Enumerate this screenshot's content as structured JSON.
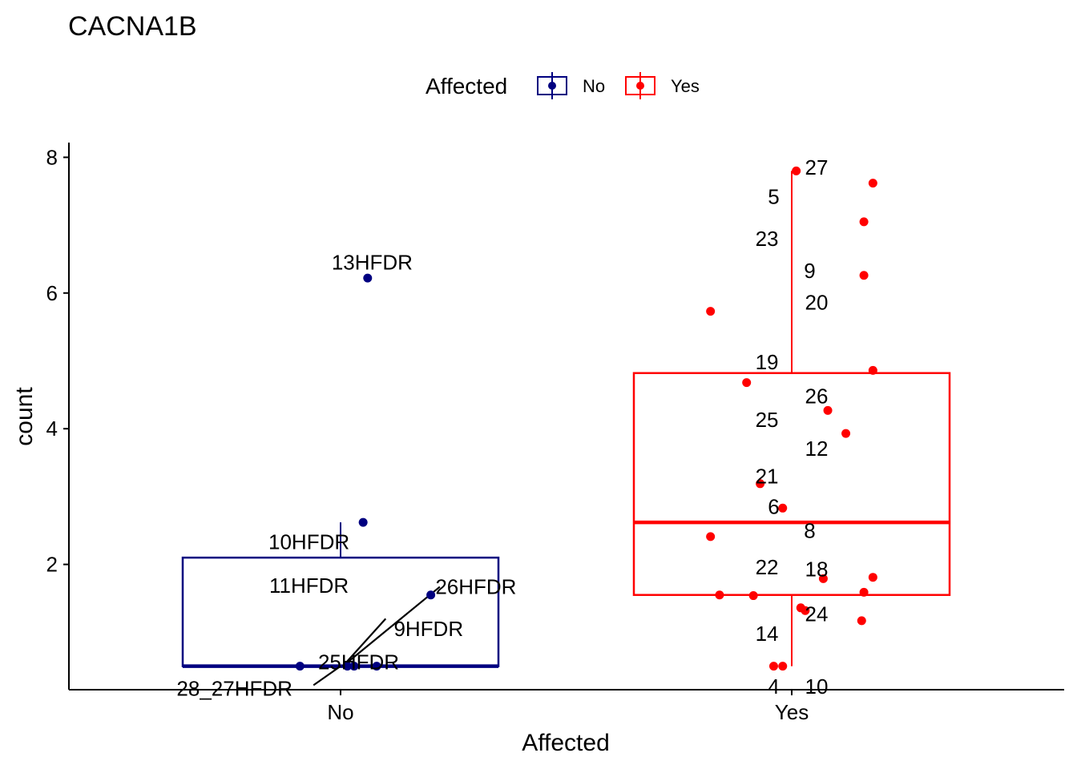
{
  "chart_data": {
    "type": "box+scatter",
    "title": "CACNA1B",
    "xlabel": "Affected",
    "ylabel": "count",
    "categories": [
      "No",
      "Yes"
    ],
    "ylim": [
      0,
      8
    ],
    "yticks": [
      "2",
      "4",
      "6",
      "8"
    ],
    "grid": false,
    "legend": {
      "title": "Affected",
      "placement": "top",
      "entries": [
        {
          "label": "No",
          "color": "#000080"
        },
        {
          "label": "Yes",
          "color": "#ff0000"
        }
      ]
    },
    "boxes": [
      {
        "category": "No",
        "color": "#000080",
        "q1": 0.5,
        "median": 0.5,
        "q3": 2.1,
        "whisker_low": 0.5,
        "whisker_high": 2.62
      },
      {
        "category": "Yes",
        "color": "#ff0000",
        "q1": 1.55,
        "median": 2.62,
        "q3": 4.82,
        "whisker_low": 0.5,
        "whisker_high": 7.8
      }
    ],
    "series": [
      {
        "name": "No",
        "color": "#000080",
        "points": [
          {
            "x": 0.06,
            "y": 6.22,
            "label": "13HFDR"
          },
          {
            "x": 0.05,
            "y": 2.62,
            "label": "10HFDR"
          },
          {
            "x": 0.2,
            "y": 1.55,
            "label": "26HFDR"
          },
          {
            "x": 0.08,
            "y": 0.5,
            "label": "9HFDR"
          },
          {
            "x": 0.03,
            "y": 0.5,
            "label": "25HFDR"
          },
          {
            "x": -0.09,
            "y": 0.5,
            "label": "28_27HFDR"
          },
          {
            "x": 0.015,
            "y": 0.5,
            "label": "11HFDR"
          }
        ]
      },
      {
        "name": "Yes",
        "color": "#ff0000",
        "points": [
          {
            "x": 0.01,
            "y": 7.8,
            "label": "27"
          },
          {
            "x": 0.18,
            "y": 7.62,
            "label": "5"
          },
          {
            "x": 0.16,
            "y": 7.05,
            "label": "23"
          },
          {
            "x": 0.16,
            "y": 6.26,
            "label": "9"
          },
          {
            "x": -0.18,
            "y": 5.73,
            "label": "20"
          },
          {
            "x": 0.18,
            "y": 4.86,
            "label": "19"
          },
          {
            "x": -0.1,
            "y": 4.68,
            "label": "26"
          },
          {
            "x": 0.08,
            "y": 4.27,
            "label": "25"
          },
          {
            "x": 0.12,
            "y": 3.93,
            "label": "12"
          },
          {
            "x": -0.07,
            "y": 3.19,
            "label": "21"
          },
          {
            "x": -0.02,
            "y": 2.83,
            "label": "6"
          },
          {
            "x": -0.18,
            "y": 2.41,
            "label": "8"
          },
          {
            "x": 0.18,
            "y": 1.81,
            "label": "22"
          },
          {
            "x": 0.07,
            "y": 1.79,
            "label": "18"
          },
          {
            "x": 0.16,
            "y": 1.59,
            "label": "24"
          },
          {
            "x": -0.16,
            "y": 1.55,
            "label": "14"
          },
          {
            "x": -0.085,
            "y": 1.54,
            "label": "4"
          },
          {
            "x": 0.02,
            "y": 1.36,
            "label": "10"
          },
          {
            "x": 0.03,
            "y": 1.32,
            "label": ""
          },
          {
            "x": 0.155,
            "y": 1.17,
            "label": ""
          },
          {
            "x": -0.04,
            "y": 0.5,
            "label": ""
          },
          {
            "x": -0.02,
            "y": 0.5,
            "label": ""
          }
        ]
      }
    ],
    "annotations": [
      {
        "text": "13HFDR",
        "x": 0.07,
        "y": 6.45
      },
      {
        "text": "10HFDR",
        "x": -0.07,
        "y": 2.33
      },
      {
        "text": "11HFDR",
        "x": -0.07,
        "y": 1.69
      },
      {
        "text": "26HFDR",
        "x": 0.3,
        "y": 1.67
      },
      {
        "text": "9HFDR",
        "x": 0.195,
        "y": 1.05
      },
      {
        "text": "25HFDR",
        "x": 0.04,
        "y": 0.56
      },
      {
        "text": "28_27HFDR",
        "x": -0.235,
        "y": 0.17
      },
      {
        "text": "27",
        "x": 0.055,
        "y": 7.85
      },
      {
        "text": "5",
        "x": -0.04,
        "y": 7.42
      },
      {
        "text": "23",
        "x": -0.055,
        "y": 6.8
      },
      {
        "text": "9",
        "x": 0.04,
        "y": 6.33
      },
      {
        "text": "20",
        "x": 0.055,
        "y": 5.86
      },
      {
        "text": "19",
        "x": -0.055,
        "y": 4.98
      },
      {
        "text": "26",
        "x": 0.055,
        "y": 4.48
      },
      {
        "text": "25",
        "x": -0.055,
        "y": 4.13
      },
      {
        "text": "12",
        "x": 0.055,
        "y": 3.71
      },
      {
        "text": "21",
        "x": -0.055,
        "y": 3.3
      },
      {
        "text": "6",
        "x": -0.04,
        "y": 2.85
      },
      {
        "text": "8",
        "x": 0.04,
        "y": 2.5
      },
      {
        "text": "22",
        "x": -0.055,
        "y": 1.96
      },
      {
        "text": "18",
        "x": 0.055,
        "y": 1.93
      },
      {
        "text": "24",
        "x": 0.055,
        "y": 1.27
      },
      {
        "text": "14",
        "x": -0.055,
        "y": 0.98
      },
      {
        "text": "4",
        "x": -0.04,
        "y": 0.2
      },
      {
        "text": "10",
        "x": 0.055,
        "y": 0.2
      }
    ]
  }
}
